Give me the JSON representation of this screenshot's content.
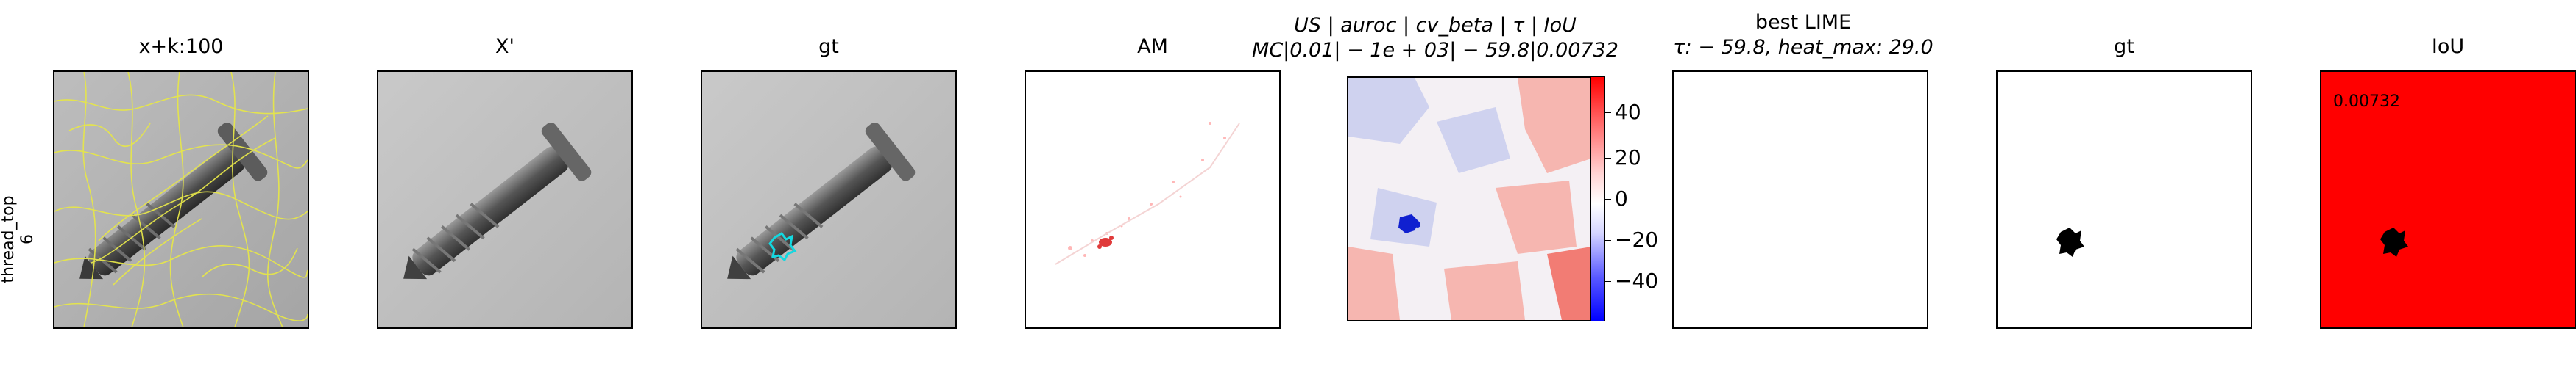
{
  "row_label": [
    "thread_top",
    "6"
  ],
  "panels": [
    {
      "title": "x+k:100"
    },
    {
      "title": "X'"
    },
    {
      "title": "gt"
    },
    {
      "title": "AM"
    },
    {
      "title_lines": [
        "US | auroc | cv_beta | τ | IoU",
        "MC|0.01| − 1e + 03| − 59.8|0.00732"
      ]
    },
    {
      "title_lines": [
        "best LIME",
        "τ: − 59.8, heat_max: 29.0"
      ]
    },
    {
      "title": "gt"
    },
    {
      "title": "IoU",
      "value_text": "0.00732"
    }
  ],
  "colorbar": {
    "ticks": [
      "40",
      "20",
      "0",
      "−20",
      "−40"
    ],
    "colors": {
      "high": "#ff0000",
      "mid": "#ffffff",
      "low": "#0000ff"
    }
  },
  "chart_data": {
    "type": "heatmap",
    "category": "thread_top",
    "image_index": "6",
    "superpixels_k": 100,
    "colorbar_ticks": [
      40,
      20,
      0,
      -20,
      -40
    ],
    "colorbar_range": [
      -59.8,
      59.8
    ],
    "US": "auroc",
    "cv_beta": "−1e+03",
    "tau": -59.8,
    "IoU": 0.00732,
    "MC": 0.01,
    "lime_tau": -59.8,
    "lime_heat_max": 29.0
  }
}
